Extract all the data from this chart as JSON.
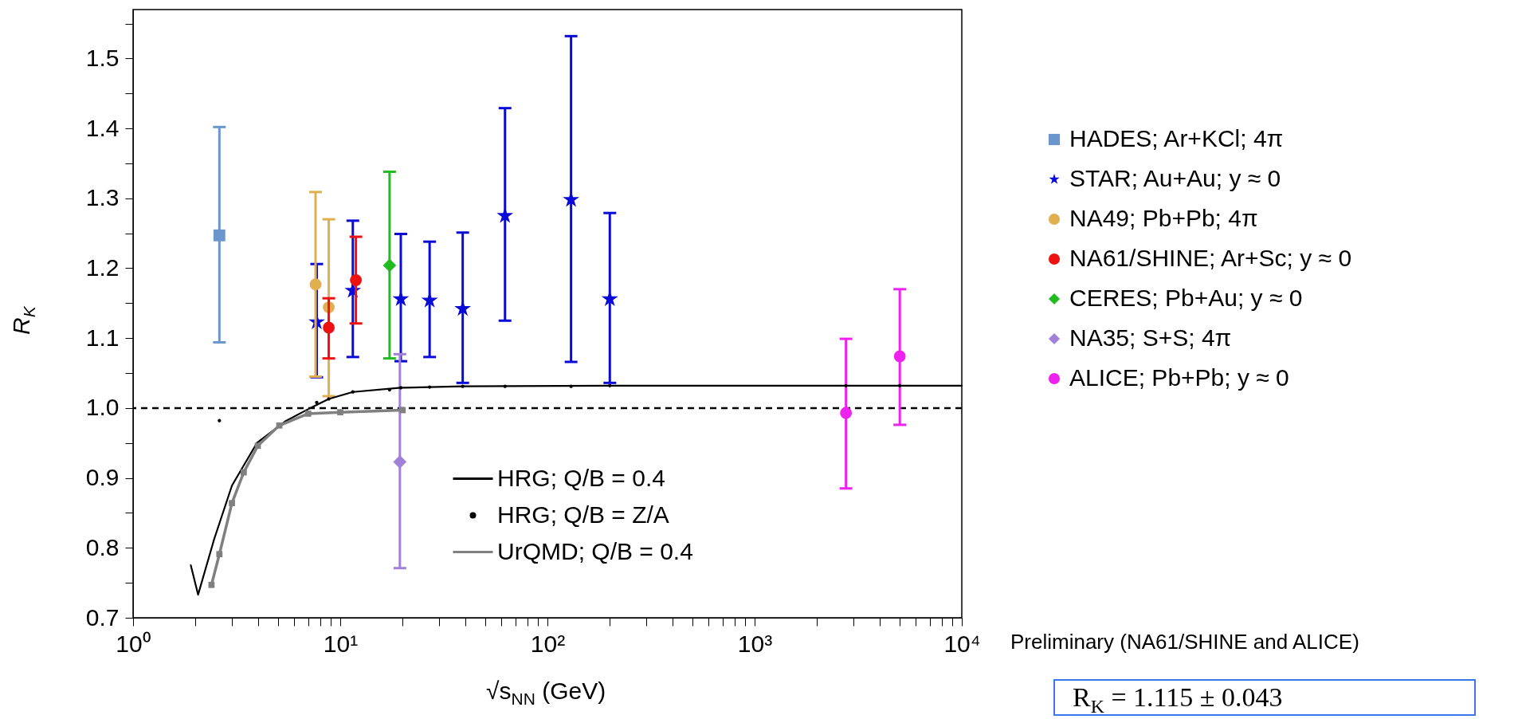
{
  "chart_data": {
    "type": "scatter",
    "xlabel": "√s$_{NN}$ (GeV)",
    "ylabel": "R$_{K}$",
    "log": "x",
    "grid": false,
    "legend": "right",
    "xlim": [
      1,
      10000
    ],
    "ylim": [
      0.7,
      1.57
    ],
    "xticks": [
      {
        "value": 1,
        "label": "10⁰"
      },
      {
        "value": 2,
        "label": null
      },
      {
        "value": 3,
        "label": null
      },
      {
        "value": 4,
        "label": null
      },
      {
        "value": 5,
        "label": null
      },
      {
        "value": 6,
        "label": null
      },
      {
        "value": 7,
        "label": null
      },
      {
        "value": 8,
        "label": null
      },
      {
        "value": 9,
        "label": null
      },
      {
        "value": 10,
        "label": "10¹"
      },
      {
        "value": 20,
        "label": null
      },
      {
        "value": 30,
        "label": null
      },
      {
        "value": 40,
        "label": null
      },
      {
        "value": 50,
        "label": null
      },
      {
        "value": 60,
        "label": null
      },
      {
        "value": 70,
        "label": null
      },
      {
        "value": 80,
        "label": null
      },
      {
        "value": 90,
        "label": null
      },
      {
        "value": 100,
        "label": "10²"
      },
      {
        "value": 200,
        "label": null
      },
      {
        "value": 300,
        "label": null
      },
      {
        "value": 400,
        "label": null
      },
      {
        "value": 500,
        "label": null
      },
      {
        "value": 600,
        "label": null
      },
      {
        "value": 700,
        "label": null
      },
      {
        "value": 800,
        "label": null
      },
      {
        "value": 900,
        "label": null
      },
      {
        "value": 1000,
        "label": "10³"
      },
      {
        "value": 2000,
        "label": null
      },
      {
        "value": 3000,
        "label": null
      },
      {
        "value": 4000,
        "label": null
      },
      {
        "value": 5000,
        "label": null
      },
      {
        "value": 6000,
        "label": null
      },
      {
        "value": 7000,
        "label": null
      },
      {
        "value": 8000,
        "label": null
      },
      {
        "value": 9000,
        "label": null
      },
      {
        "value": 10000,
        "label": "10⁴"
      }
    ],
    "yticks": [
      0.7,
      {
        "value": 0.75,
        "label": null
      },
      0.8,
      {
        "value": 0.85,
        "label": null
      },
      0.9,
      {
        "value": 0.95,
        "label": null
      },
      {
        "value": 1,
        "label": "1.0"
      },
      {
        "value": 1.05,
        "label": null
      },
      1.1,
      {
        "value": 1.15,
        "label": null
      },
      1.2,
      {
        "value": 1.25,
        "label": null
      },
      1.3,
      {
        "value": 1.35,
        "label": null
      },
      1.4,
      {
        "value": 1.45,
        "label": null
      },
      1.5,
      {
        "value": 1.55,
        "label": null
      }
    ],
    "ref_lines": [
      {
        "axis": "y",
        "value": 1.0,
        "color": "#000000",
        "line_style": "dashed"
      }
    ],
    "series": [
      {
        "name": "HADES; Ar+KCl; 4π",
        "marker": "square",
        "color": "#6a96cc",
        "x": [
          2.61
        ],
        "values": [
          1.247
        ],
        "errors": [
          [
            1.094,
            1.402
          ]
        ]
      },
      {
        "name": "STAR; Au+Au; y ≈ 0",
        "marker": "star",
        "color": "#0a0ad8",
        "x": [
          7.7,
          11.5,
          19.6,
          27,
          39,
          62.4,
          130,
          200
        ],
        "values": [
          1.123,
          1.168,
          1.156,
          1.154,
          1.142,
          1.275,
          1.298,
          1.156
        ],
        "errors": [
          [
            1.044,
            1.206
          ],
          [
            1.073,
            1.268
          ],
          [
            1.067,
            1.249
          ],
          [
            1.073,
            1.238
          ],
          [
            1.036,
            1.251
          ],
          [
            1.125,
            1.429
          ],
          [
            1.066,
            1.532
          ],
          [
            1.036,
            1.279
          ]
        ]
      },
      {
        "name": "NA49; Pb+Pb; 4π",
        "marker": "circle",
        "color": "#e0b050",
        "x": [
          7.6,
          8.8
        ],
        "values": [
          1.177,
          1.144
        ],
        "errors": [
          [
            1.045,
            1.309
          ],
          [
            1.017,
            1.27
          ]
        ]
      },
      {
        "name": "NA61/SHINE; Ar+Sc; y ≈ 0",
        "marker": "circle",
        "color": "#ee1111",
        "x": [
          8.8,
          11.9
        ],
        "values": [
          1.115,
          1.183
        ],
        "errors": [
          [
            1.071,
            1.157
          ],
          [
            1.121,
            1.245
          ]
        ]
      },
      {
        "name": "CERES; Pb+Au; y ≈ 0",
        "marker": "diamond",
        "color": "#22bb22",
        "x": [
          17.3
        ],
        "values": [
          1.204
        ],
        "errors": [
          [
            1.071,
            1.338
          ]
        ]
      },
      {
        "name": "NA35; S+S; 4π",
        "marker": "diamond",
        "color": "#a080d8",
        "x": [
          19.4
        ],
        "values": [
          0.923
        ],
        "errors": [
          [
            0.771,
            1.077
          ]
        ]
      },
      {
        "name": "ALICE; Pb+Pb; y ≈ 0",
        "marker": "circle",
        "color": "#ee22ee",
        "x": [
          2760,
          5020
        ],
        "values": [
          0.993,
          1.074
        ],
        "errors": [
          [
            0.885,
            1.099
          ],
          [
            0.976,
            1.17
          ]
        ]
      },
      {
        "name": "HRG; Q/B = 0.4",
        "type": "line",
        "marker": "none",
        "color": "#000000",
        "x": [
          1.9,
          2.06,
          2.46,
          3.0,
          3.96,
          5.43,
          7.17,
          8.8,
          11.5,
          19.6,
          39,
          200,
          10000
        ],
        "values": [
          0.775,
          0.733,
          0.812,
          0.889,
          0.95,
          0.981,
          1.0,
          1.013,
          1.023,
          1.029,
          1.031,
          1.032,
          1.032
        ]
      },
      {
        "name": "HRG; Q/B = Z/A",
        "marker": "circle",
        "color": "#000000",
        "x": [
          2.61,
          7.7,
          8.8,
          11.5,
          17.3,
          19.6,
          27,
          39,
          62.4,
          130,
          200,
          2760,
          5020
        ],
        "values": [
          0.982,
          1.008,
          1.013,
          1.023,
          1.026,
          1.029,
          1.03,
          1.031,
          1.031,
          1.031,
          1.032,
          1.032,
          1.032
        ]
      },
      {
        "name": "UrQMD; Q/B = 0.4",
        "type": "line",
        "marker": "square",
        "color": "#808080",
        "x": [
          2.39,
          2.61,
          3.0,
          3.42,
          4.0,
          5.08,
          7.0,
          10.0,
          20
        ],
        "values": [
          0.747,
          0.791,
          0.864,
          0.908,
          0.946,
          0.975,
          0.992,
          0.994,
          0.997
        ]
      }
    ],
    "annotations": [
      "Preliminary (NA61/SHINE and ALICE)",
      "R$_{K}$ = 1.115 ± 0.043"
    ]
  }
}
